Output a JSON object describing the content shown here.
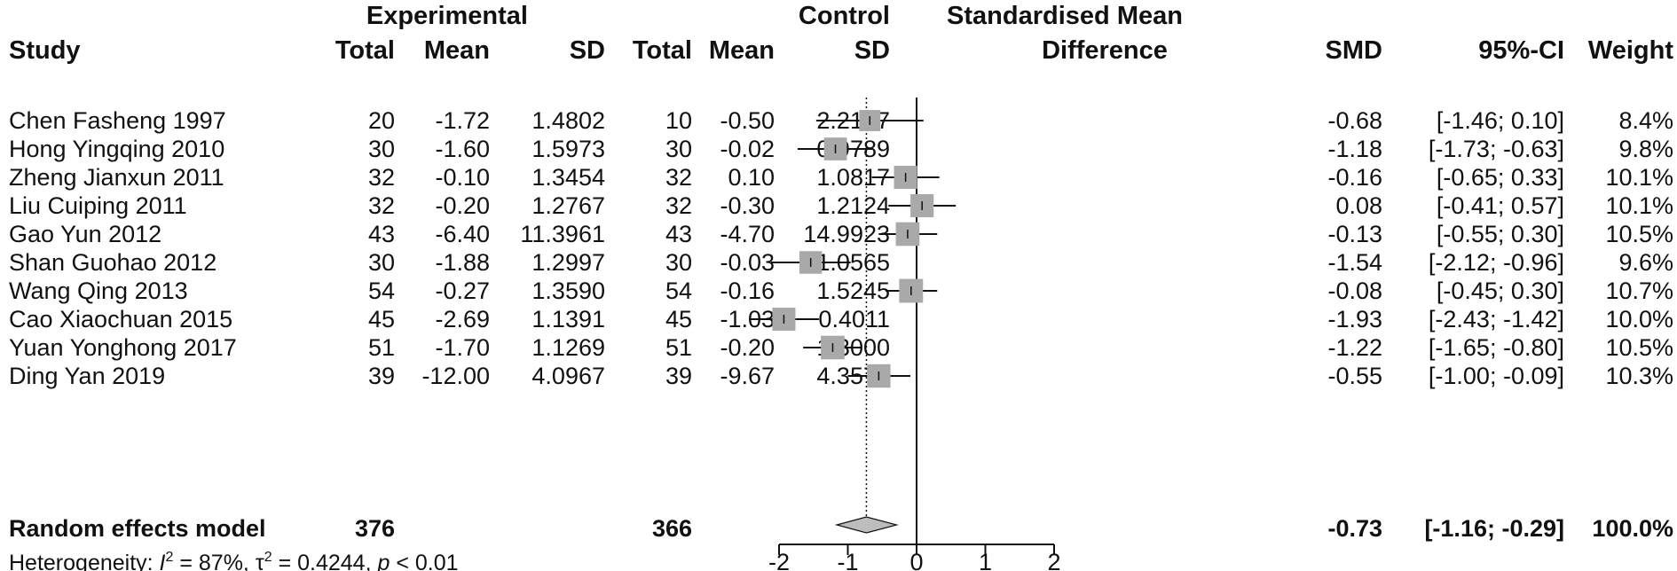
{
  "chart_data": {
    "type": "forest",
    "headers": {
      "study": "Study",
      "experimental": "Experimental",
      "control": "Control",
      "total": "Total",
      "mean": "Mean",
      "sd": "SD",
      "plot_title_line1": "Standardised Mean",
      "plot_title_line2": "Difference",
      "smd": "SMD",
      "ci": "95%-CI",
      "weight": "Weight"
    },
    "studies": [
      {
        "name": "Chen Fasheng 1997",
        "e_total": "20",
        "e_mean": "-1.72",
        "e_sd": "1.4802",
        "c_total": "10",
        "c_mean": "-0.50",
        "c_sd": "2.2147",
        "smd_text": "-0.68",
        "ci_text": "[-1.46;  0.10]",
        "weight_text": "8.4%",
        "smd": -0.68,
        "lower": -1.46,
        "upper": 0.1,
        "weight": 8.4
      },
      {
        "name": "Hong Yingqing 2010",
        "e_total": "30",
        "e_mean": "-1.60",
        "e_sd": "1.5973",
        "c_total": "30",
        "c_mean": "-0.02",
        "c_sd": "0.9789",
        "smd_text": "-1.18",
        "ci_text": "[-1.73; -0.63]",
        "weight_text": "9.8%",
        "smd": -1.18,
        "lower": -1.73,
        "upper": -0.63,
        "weight": 9.8
      },
      {
        "name": "Zheng Jianxun 2011",
        "e_total": "32",
        "e_mean": "-0.10",
        "e_sd": "1.3454",
        "c_total": "32",
        "c_mean": "0.10",
        "c_sd": "1.0817",
        "smd_text": "-0.16",
        "ci_text": "[-0.65;  0.33]",
        "weight_text": "10.1%",
        "smd": -0.16,
        "lower": -0.65,
        "upper": 0.33,
        "weight": 10.1
      },
      {
        "name": "Liu Cuiping 2011",
        "e_total": "32",
        "e_mean": "-0.20",
        "e_sd": "1.2767",
        "c_total": "32",
        "c_mean": "-0.30",
        "c_sd": "1.2124",
        "smd_text": "0.08",
        "ci_text": "[-0.41;  0.57]",
        "weight_text": "10.1%",
        "smd": 0.08,
        "lower": -0.41,
        "upper": 0.57,
        "weight": 10.1
      },
      {
        "name": "Gao Yun 2012",
        "e_total": "43",
        "e_mean": "-6.40",
        "e_sd": "11.3961",
        "c_total": "43",
        "c_mean": "-4.70",
        "c_sd": "14.9923",
        "smd_text": "-0.13",
        "ci_text": "[-0.55;  0.30]",
        "weight_text": "10.5%",
        "smd": -0.13,
        "lower": -0.55,
        "upper": 0.3,
        "weight": 10.5
      },
      {
        "name": "Shan Guohao 2012",
        "e_total": "30",
        "e_mean": "-1.88",
        "e_sd": "1.2997",
        "c_total": "30",
        "c_mean": "-0.03",
        "c_sd": "1.0565",
        "smd_text": "-1.54",
        "ci_text": "[-2.12; -0.96]",
        "weight_text": "9.6%",
        "smd": -1.54,
        "lower": -2.12,
        "upper": -0.96,
        "weight": 9.6
      },
      {
        "name": "Wang Qing 2013",
        "e_total": "54",
        "e_mean": "-0.27",
        "e_sd": "1.3590",
        "c_total": "54",
        "c_mean": "-0.16",
        "c_sd": "1.5245",
        "smd_text": "-0.08",
        "ci_text": "[-0.45;  0.30]",
        "weight_text": "10.7%",
        "smd": -0.08,
        "lower": -0.45,
        "upper": 0.3,
        "weight": 10.7
      },
      {
        "name": "Cao Xiaochuan 2015",
        "e_total": "45",
        "e_mean": "-2.69",
        "e_sd": "1.1391",
        "c_total": "45",
        "c_mean": "-1.03",
        "c_sd": "0.4011",
        "smd_text": "-1.93",
        "ci_text": "[-2.43; -1.42]",
        "weight_text": "10.0%",
        "smd": -1.93,
        "lower": -2.43,
        "upper": -1.42,
        "weight": 10.0
      },
      {
        "name": "Yuan Yonghong 2017",
        "e_total": "51",
        "e_mean": "-1.70",
        "e_sd": "1.1269",
        "c_total": "51",
        "c_mean": "-0.20",
        "c_sd": "1.3000",
        "smd_text": "-1.22",
        "ci_text": "[-1.65; -0.80]",
        "weight_text": "10.5%",
        "smd": -1.22,
        "lower": -1.65,
        "upper": -0.8,
        "weight": 10.5
      },
      {
        "name": "Ding Yan 2019",
        "e_total": "39",
        "e_mean": "-12.00",
        "e_sd": "4.0967",
        "c_total": "39",
        "c_mean": "-9.67",
        "c_sd": "4.3571",
        "smd_text": "-0.55",
        "ci_text": "[-1.00; -0.09]",
        "weight_text": "10.3%",
        "smd": -0.55,
        "lower": -1.0,
        "upper": -0.09,
        "weight": 10.3
      }
    ],
    "pooled": {
      "name": "Random effects model",
      "e_total": "376",
      "c_total": "366",
      "smd_text": "-0.73",
      "ci_text": "[-1.16; -0.29]",
      "weight_text": "100.0%",
      "smd": -0.73,
      "lower": -1.16,
      "upper": -0.29
    },
    "heterogeneity": {
      "prefix": "Heterogeneity: ",
      "i2_symbol": "I",
      "i2_value": " = 87%, ",
      "tau2_symbol": "τ",
      "tau2_value": " = 0.4244, ",
      "p_symbol": "p",
      "p_value": " < 0.01",
      "superscript": "2"
    },
    "x_axis": {
      "ticks": [
        -2,
        -1,
        0,
        1,
        2
      ],
      "tick_labels": [
        "-2",
        "-1",
        "0",
        "1",
        "2"
      ],
      "range": [
        -2,
        2
      ],
      "null_line": 0
    },
    "colors": {
      "box": "#a9a9a9",
      "diamond": "#bdbdbd",
      "line": "#111111"
    }
  }
}
